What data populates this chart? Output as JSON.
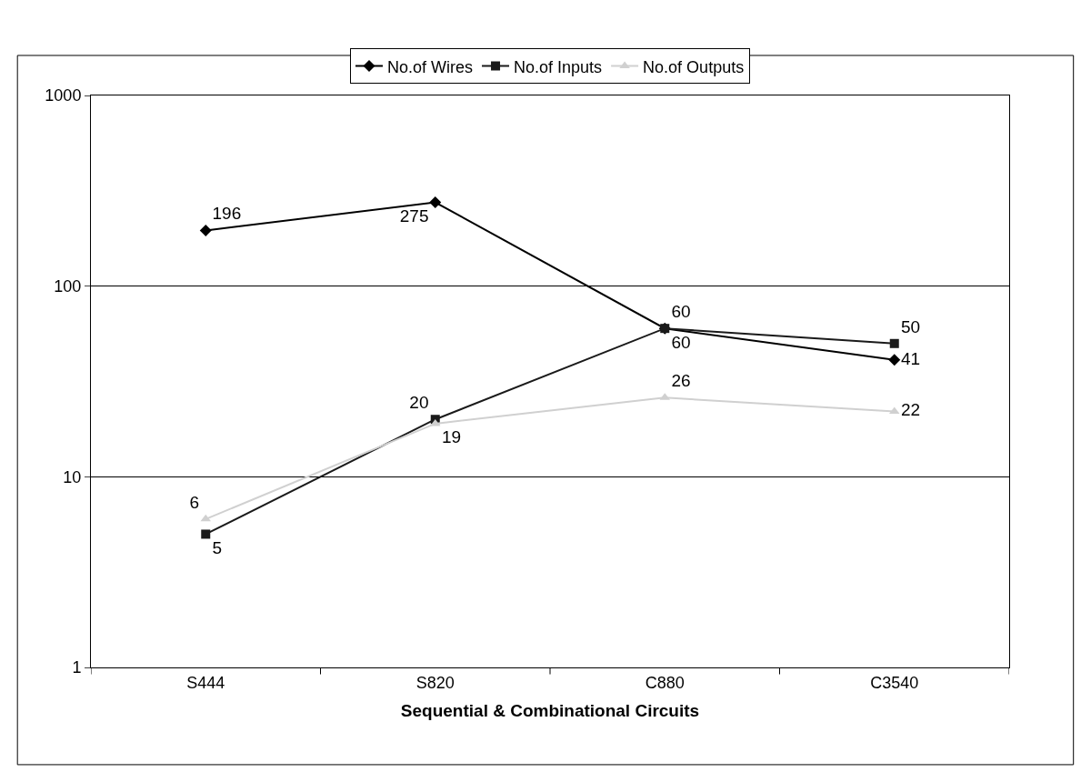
{
  "chart_data": {
    "type": "line",
    "xlabel": "Sequential & Combinational Circuits",
    "categories": [
      "S444",
      "S820",
      "C880",
      "C3540"
    ],
    "series": [
      {
        "name": "No.of Wires",
        "color": "#000000",
        "marker": "diamond",
        "values": [
          196,
          275,
          60,
          41
        ]
      },
      {
        "name": "No.of Inputs",
        "color": "#1a1a1a",
        "marker": "square",
        "values": [
          5,
          20,
          60,
          50
        ]
      },
      {
        "name": "No.of Outputs",
        "color": "#d0d0d0",
        "marker": "triangle",
        "values": [
          6,
          19,
          26,
          22
        ]
      }
    ],
    "log": true,
    "ylim": [
      1,
      1000
    ],
    "yticks": [
      1,
      10,
      100,
      1000
    ],
    "grid": "y",
    "legend": "top",
    "data_labels": true
  }
}
